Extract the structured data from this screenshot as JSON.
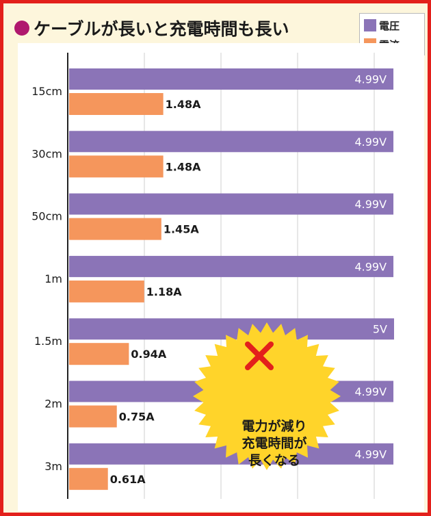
{
  "title": "ケーブルが長いと充電時間も長い",
  "legend": {
    "voltage_label": "電圧",
    "current_label": "電流"
  },
  "colors": {
    "voltage": "#8b74b7",
    "current": "#f5965c",
    "accent_border": "#e3201b",
    "title_dot": "#b0186e",
    "burst_fill": "#ffd42a",
    "cross": "#e3201b"
  },
  "annotation": {
    "icon": "cross-mark-icon",
    "lines": [
      "電力が減り",
      "充電時間が",
      "長くなる"
    ]
  },
  "chart_data": {
    "type": "bar",
    "orientation": "horizontal",
    "title": "ケーブルが長いと充電時間も長い",
    "categories": [
      "15cm",
      "30cm",
      "50cm",
      "1m",
      "1.5m",
      "2m",
      "3m"
    ],
    "series": [
      {
        "name": "電圧",
        "unit": "V",
        "values": [
          4.99,
          4.99,
          4.99,
          4.99,
          5,
          4.99,
          4.99
        ],
        "labels": [
          "4.99V",
          "4.99V",
          "4.99V",
          "4.99V",
          "5V",
          "4.99V",
          "4.99V"
        ]
      },
      {
        "name": "電流",
        "unit": "A",
        "values": [
          1.48,
          1.48,
          1.45,
          1.18,
          0.94,
          0.75,
          0.61
        ],
        "labels": [
          "1.48A",
          "1.48A",
          "1.45A",
          "1.18A",
          "0.94A",
          "0.75A",
          "0.61A"
        ]
      }
    ],
    "grid": true,
    "legend_position": "top-right"
  }
}
